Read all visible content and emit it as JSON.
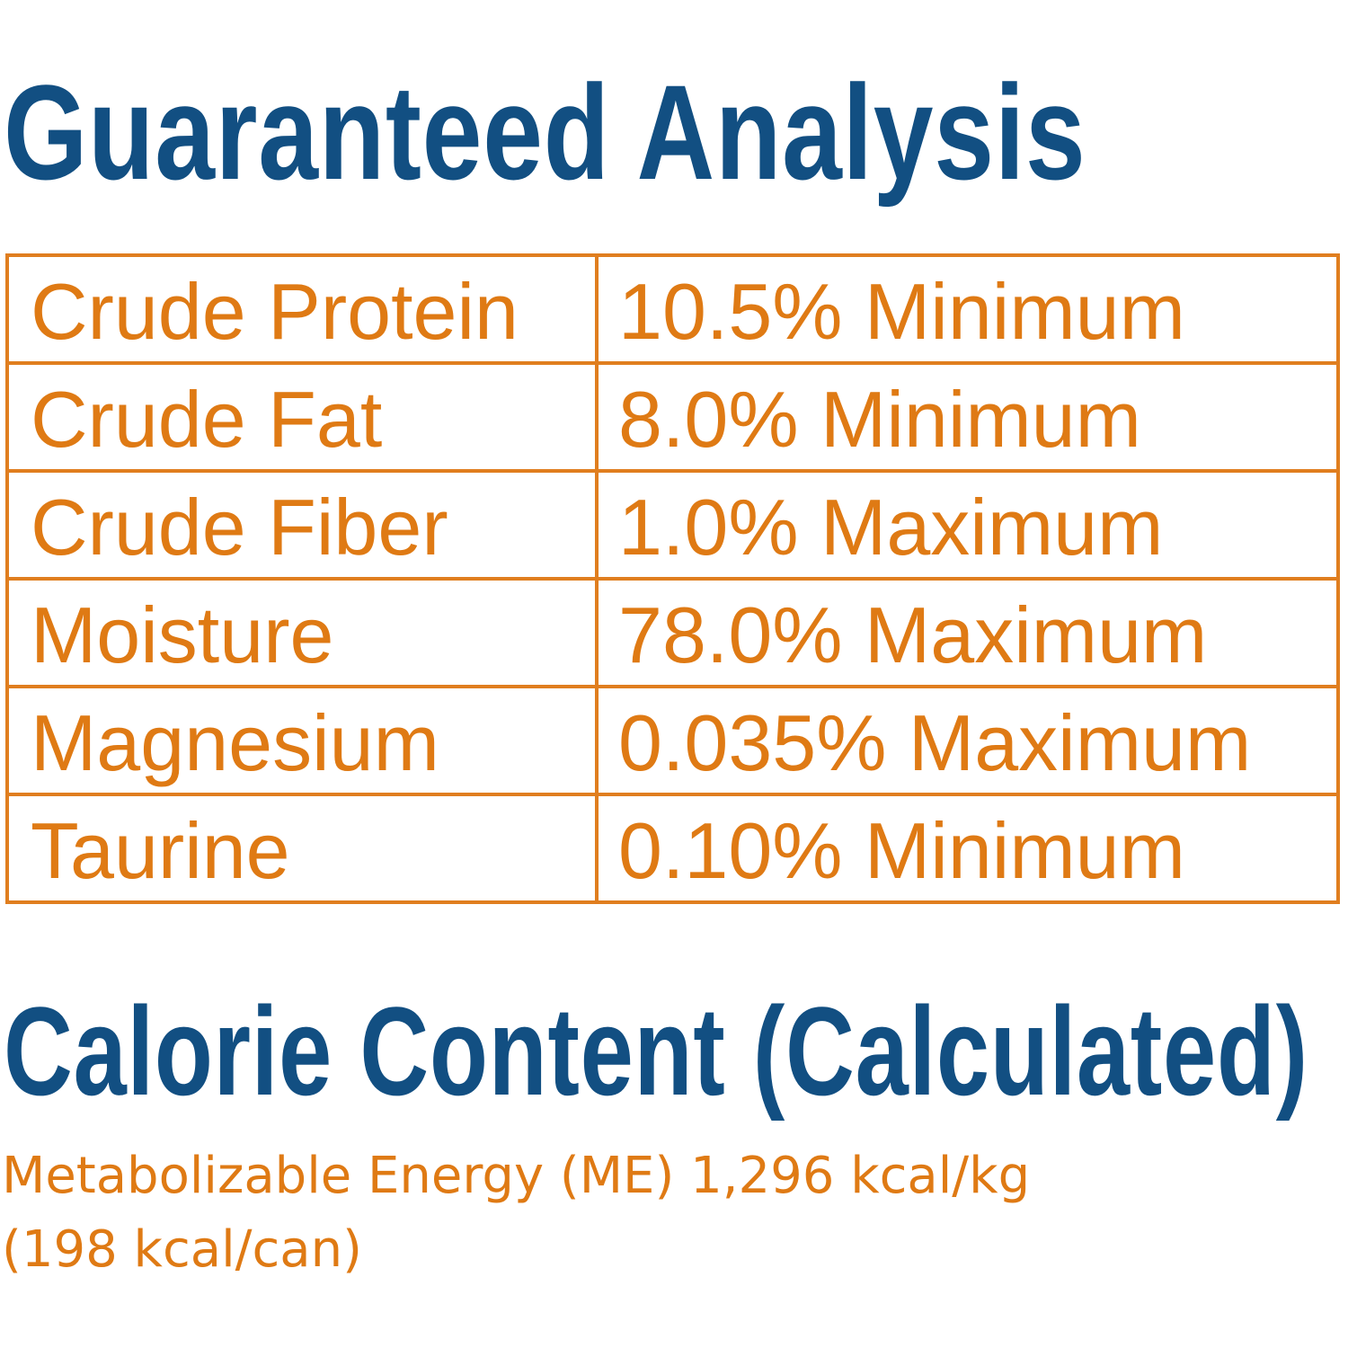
{
  "guaranteed_analysis": {
    "title": "Guaranteed Analysis",
    "rows": [
      {
        "nutrient": "Crude Protein",
        "value": "10.5% Minimum"
      },
      {
        "nutrient": "Crude Fat",
        "value": "8.0% Minimum"
      },
      {
        "nutrient": "Crude Fiber",
        "value": "1.0% Maximum"
      },
      {
        "nutrient": "Moisture",
        "value": "78.0% Maximum"
      },
      {
        "nutrient": "Magnesium",
        "value": "0.035% Maximum"
      },
      {
        "nutrient": "Taurine",
        "value": "0.10% Minimum"
      }
    ]
  },
  "calorie_content": {
    "title": "Calorie Content (Calculated)",
    "line1": "Metabolizable Energy (ME) 1,296 kcal/kg",
    "line2": "(198 kcal/can)"
  },
  "colors": {
    "heading": "#124f82",
    "text_and_border": "#df7a14"
  }
}
